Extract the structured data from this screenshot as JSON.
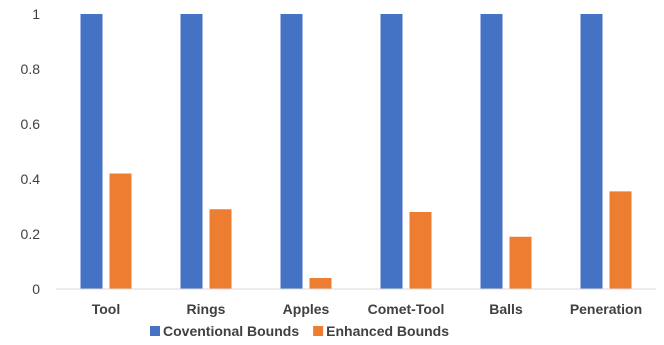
{
  "chart_data": {
    "type": "bar",
    "categories": [
      "Tool",
      "Rings",
      "Apples",
      "Comet-Tool",
      "Balls",
      "Peneration"
    ],
    "series": [
      {
        "name": "Coventional Bounds",
        "color": "#4472C4",
        "values": [
          1,
          1,
          1,
          1,
          1,
          1
        ]
      },
      {
        "name": "Enhanced Bounds",
        "color": "#ED7D31",
        "values": [
          0.42,
          0.29,
          0.04,
          0.28,
          0.19,
          0.355
        ]
      }
    ],
    "ylim": [
      0,
      1
    ],
    "yticks": [
      "0",
      "0.2",
      "0.4",
      "0.6",
      "0.8",
      "1"
    ],
    "grid": false,
    "legend": "bottom",
    "title": "",
    "xlabel": "",
    "ylabel": ""
  }
}
